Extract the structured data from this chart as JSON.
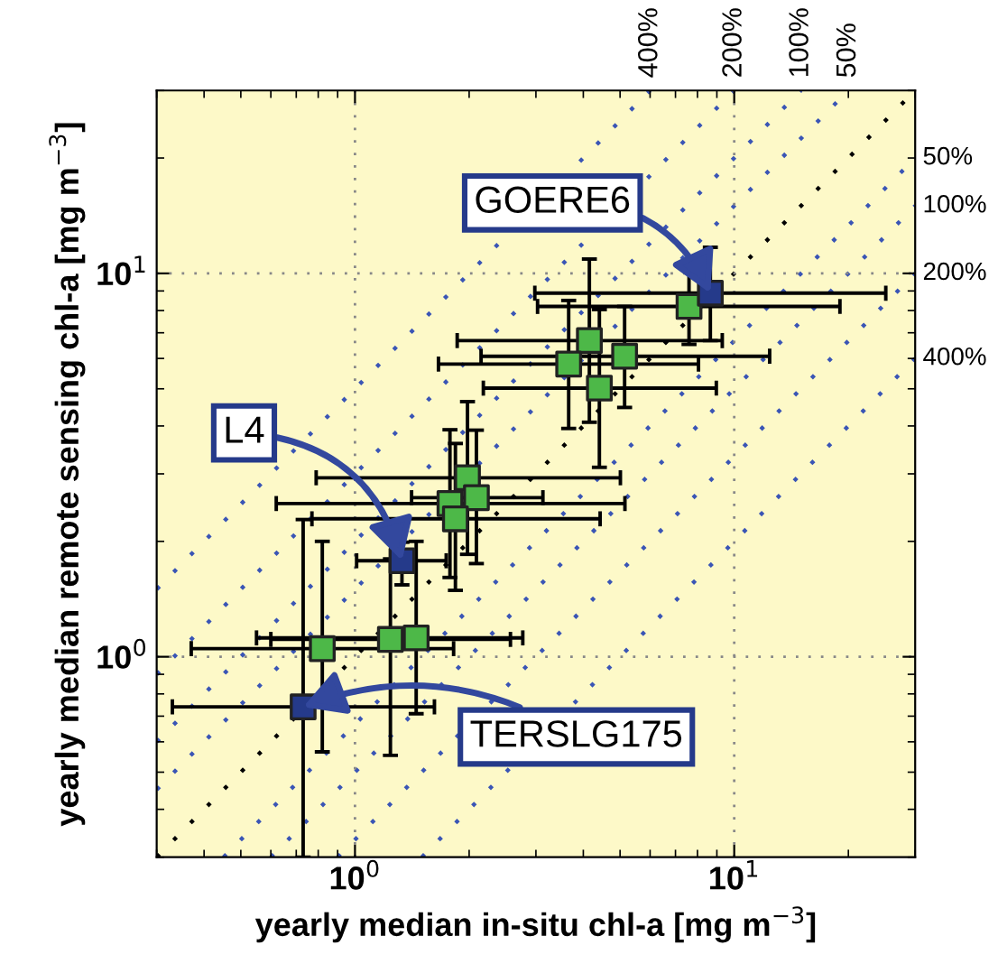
{
  "chart_data": {
    "type": "scatter",
    "xlabel": "yearly median in-situ chl-a [mg m$^{−3}$]",
    "ylabel": "yearly median remote sensing chl-a [mg m$^{−3}$]",
    "log": "xy",
    "grid": true,
    "xlim": [
      0.3,
      30
    ],
    "ylim": [
      0.3,
      30
    ],
    "xticks": [
      {
        "value": 1,
        "label": "10$^{0}$"
      },
      {
        "value": 10,
        "label": "10$^{1}$"
      }
    ],
    "yticks": [
      {
        "value": 1,
        "label": "10$^{0}$"
      },
      {
        "value": 10,
        "label": "10$^{1}$"
      }
    ],
    "series": [
      {
        "type": "line",
        "color": "#000000",
        "line_style": "dotted",
        "marker": "none",
        "x": [
          0.3,
          30
        ],
        "values": [
          0.3,
          30
        ]
      },
      {
        "type": "line",
        "color": "#3a55b5",
        "line_style": "dotted",
        "marker": "none",
        "x": [
          0.3,
          20
        ],
        "values": [
          0.45,
          30
        ]
      },
      {
        "type": "line",
        "color": "#3a55b5",
        "line_style": "dotted",
        "marker": "none",
        "x": [
          0.3,
          15
        ],
        "values": [
          0.6,
          30
        ]
      },
      {
        "type": "line",
        "color": "#3a55b5",
        "line_style": "dotted",
        "marker": "none",
        "x": [
          0.3,
          10
        ],
        "values": [
          0.9,
          30
        ]
      },
      {
        "type": "line",
        "color": "#3a55b5",
        "line_style": "dotted",
        "marker": "none",
        "x": [
          0.3,
          6
        ],
        "values": [
          1.5,
          30
        ]
      },
      {
        "type": "line",
        "color": "#3a55b5",
        "line_style": "dotted",
        "marker": "none",
        "x": [
          0.45,
          30
        ],
        "values": [
          0.3,
          20
        ]
      },
      {
        "type": "line",
        "color": "#3a55b5",
        "line_style": "dotted",
        "marker": "none",
        "x": [
          0.6,
          30
        ],
        "values": [
          0.3,
          15
        ]
      },
      {
        "type": "line",
        "color": "#3a55b5",
        "line_style": "dotted",
        "marker": "none",
        "x": [
          0.9,
          30
        ],
        "values": [
          0.3,
          10
        ]
      },
      {
        "type": "line",
        "color": "#3a55b5",
        "line_style": "dotted",
        "marker": "none",
        "x": [
          1.5,
          30
        ],
        "values": [
          0.3,
          6
        ]
      },
      {
        "color": "#4db848",
        "marker": "square",
        "x": [
          7.6,
          4.15,
          3.66,
          5.14,
          4.41,
          1.98,
          1.78,
          2.09,
          1.84,
          0.82,
          1.24,
          1.45
        ],
        "values": [
          8.2,
          6.68,
          5.8,
          6.08,
          5.02,
          2.93,
          2.51,
          2.6,
          2.29,
          1.05,
          1.11,
          1.12
        ],
        "errors": [
          [
            6.53,
            10.3
          ],
          [
            4.09,
            10.9
          ],
          [
            3.94,
            8.5
          ],
          [
            4.47,
            8.2
          ],
          [
            3.12,
            8.05
          ],
          [
            1.85,
            4.63
          ],
          [
            1.61,
            3.91
          ],
          [
            1.75,
            3.9
          ],
          [
            1.49,
            3.6
          ],
          [
            0.565,
            2.0
          ],
          [
            0.553,
            1.8
          ],
          [
            0.71,
            2.0
          ]
        ],
        "xerrors": [
          [
            3.03,
            19
          ],
          [
            1.86,
            9.3
          ],
          [
            1.66,
            8.05
          ],
          [
            2.15,
            12.4
          ],
          [
            2.18,
            8.97
          ],
          [
            0.79,
            5.01
          ],
          [
            0.62,
            5.15
          ],
          [
            1.41,
            3.13
          ],
          [
            0.77,
            4.43
          ],
          [
            0.37,
            1.82
          ],
          [
            0.6,
            2.57
          ],
          [
            0.55,
            2.77
          ]
        ]
      },
      {
        "color": "#253a8a",
        "marker": "square",
        "x": [
          8.65,
          1.33,
          0.73
        ],
        "values": [
          8.88,
          1.78,
          0.74
        ],
        "errors": [
          [
            6.68,
            11.7
          ],
          [
            1.54,
            1.99
          ],
          [
            0.3,
            2.28
          ]
        ],
        "xerrors": [
          [
            2.98,
            25.1
          ],
          [
            1.01,
            1.74
          ],
          [
            0.33,
            1.62
          ]
        ]
      }
    ],
    "annotations": [
      {
        "text": "GOERE6",
        "x": 8.65,
        "y": 8.88
      },
      {
        "text": "L4",
        "x": 1.33,
        "y": 1.78
      },
      {
        "text": "TERSLG175",
        "x": 0.73,
        "y": 0.74
      },
      {
        "text": "400%",
        "x": 6,
        "y": 30
      },
      {
        "text": "200%",
        "x": 10,
        "y": 30
      },
      {
        "text": "100%",
        "x": 15,
        "y": 30
      },
      {
        "text": "50%",
        "x": 20,
        "y": 30
      },
      {
        "text": "50%",
        "x": 30,
        "y": 20
      },
      {
        "text": "100%",
        "x": 30,
        "y": 15
      },
      {
        "text": "200%",
        "x": 30,
        "y": 10
      },
      {
        "text": "400%",
        "x": 30,
        "y": 6
      }
    ]
  }
}
